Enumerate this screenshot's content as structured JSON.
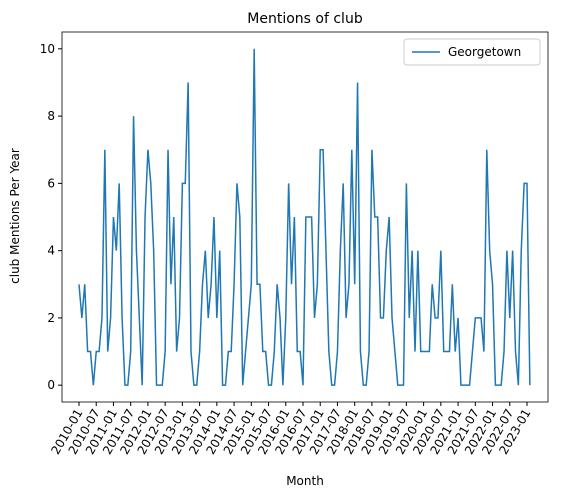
{
  "chart_data": {
    "type": "line",
    "title": "Mentions of club",
    "xlabel": "Month",
    "ylabel": "club Mentions Per Year",
    "categories": [
      "2010-01",
      null,
      null,
      null,
      null,
      null,
      "2010-07",
      null,
      null,
      null,
      null,
      null,
      "2011-01",
      null,
      null,
      null,
      null,
      null,
      "2011-07",
      null,
      null,
      null,
      null,
      null,
      "2012-01",
      null,
      null,
      null,
      null,
      null,
      "2012-07",
      null,
      null,
      null,
      null,
      null,
      "2013-01",
      null,
      null,
      null,
      null,
      null,
      "2013-07",
      null,
      null,
      null,
      null,
      null,
      "2014-01",
      null,
      null,
      null,
      null,
      null,
      "2014-07",
      null,
      null,
      null,
      null,
      null,
      "2015-01",
      null,
      null,
      null,
      null,
      null,
      "2015-07",
      null,
      null,
      null,
      null,
      null,
      "2016-01",
      null,
      null,
      null,
      null,
      null,
      "2016-07",
      null,
      null,
      null,
      null,
      null,
      "2017-01",
      null,
      null,
      null,
      null,
      null,
      "2017-07",
      null,
      null,
      null,
      null,
      null,
      "2018-01",
      null,
      null,
      null,
      null,
      null,
      "2018-07",
      null,
      null,
      null,
      null,
      null,
      "2019-01",
      null,
      null,
      null,
      null,
      null,
      "2019-07",
      null,
      null,
      null,
      null,
      null,
      "2020-01",
      null,
      null,
      null,
      null,
      null,
      "2020-07",
      null,
      null,
      null,
      null,
      null,
      "2021-01",
      null,
      null,
      null,
      null,
      null,
      "2021-07",
      null,
      null,
      null,
      null,
      null,
      "2022-01",
      null,
      null,
      null,
      null,
      null,
      "2022-07",
      null,
      null,
      null,
      null,
      null,
      "2023-01",
      null
    ],
    "series": [
      {
        "name": "Georgetown",
        "color": "#1f77b4",
        "values": [
          3,
          2,
          3,
          1,
          1,
          0,
          1,
          1,
          2,
          7,
          1,
          2,
          5,
          4,
          6,
          2,
          0,
          0,
          1,
          8,
          4,
          2,
          0,
          5,
          7,
          6,
          4,
          0,
          0,
          0,
          1,
          7,
          3,
          5,
          1,
          2,
          6,
          6,
          9,
          1,
          0,
          0,
          1,
          3,
          4,
          2,
          3,
          5,
          2,
          4,
          0,
          0,
          1,
          1,
          3,
          6,
          5,
          0,
          1,
          2,
          3,
          10,
          3,
          3,
          1,
          1,
          0,
          0,
          1,
          3,
          2,
          0,
          2,
          6,
          3,
          5,
          1,
          1,
          0,
          5,
          5,
          5,
          2,
          3,
          7,
          7,
          4,
          1,
          0,
          0,
          1,
          4,
          6,
          2,
          3,
          7,
          3,
          9,
          1,
          0,
          0,
          1,
          7,
          5,
          5,
          2,
          2,
          4,
          5,
          2,
          1,
          0,
          0,
          0,
          6,
          2,
          4,
          1,
          4,
          1,
          1,
          1,
          1,
          3,
          2,
          2,
          4,
          1,
          1,
          1,
          3,
          1,
          2,
          0,
          0,
          0,
          0,
          1,
          2,
          2,
          2,
          1,
          7,
          4,
          3,
          0,
          0,
          0,
          1,
          4,
          2,
          4,
          1,
          0,
          4,
          6,
          6,
          0
        ]
      }
    ],
    "ylim": [
      -0.5,
      10.5
    ],
    "yticks": [
      0,
      2,
      4,
      6,
      8,
      10
    ],
    "legend": "upper right"
  }
}
